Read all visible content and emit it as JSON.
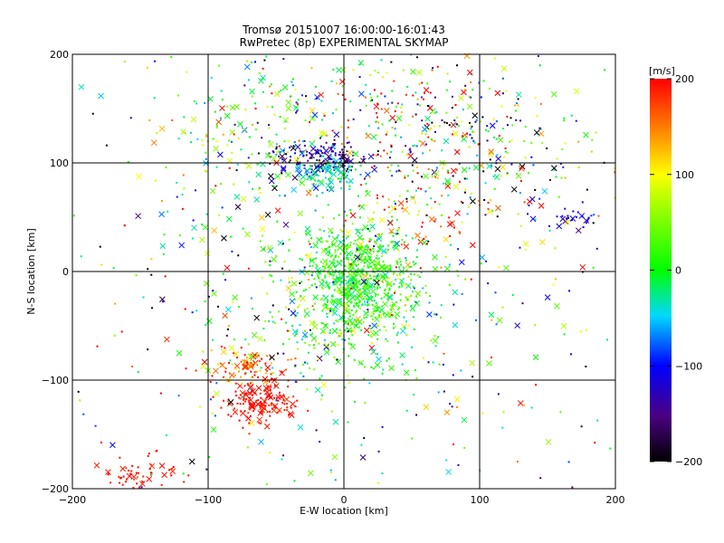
{
  "chart_data": {
    "type": "scatter",
    "title": "Tromsø 20151007 16:00:00-16:01:43",
    "subtitle": "RwPretec (8p) EXPERIMENTAL SKYMAP",
    "xlabel": "E-W location [km]",
    "ylabel": "N-S location [km]",
    "xlim": [
      -200,
      200
    ],
    "ylim": [
      -200,
      200
    ],
    "xticks": [
      -200,
      -100,
      0,
      100,
      200
    ],
    "yticks": [
      -200,
      -100,
      0,
      100,
      200
    ],
    "grid": true,
    "colorbar": {
      "label": "[m/s]",
      "range": [
        -200,
        200
      ],
      "ticks": [
        200,
        100,
        0,
        -100,
        -200
      ],
      "colormap": "black-purple-blue-cyan-green-yellow-orange-red"
    },
    "markers": [
      "dot",
      "x"
    ],
    "clusters": [
      {
        "x": 10,
        "y": -5,
        "spread_x": 18,
        "spread_y": 22,
        "count": 520,
        "velocity": 15,
        "v_spread": 25
      },
      {
        "x": 0,
        "y": -30,
        "spread_x": 35,
        "spread_y": 40,
        "count": 380,
        "velocity": 20,
        "v_spread": 40
      },
      {
        "x": -15,
        "y": 105,
        "spread_x": 18,
        "spread_y": 8,
        "count": 160,
        "velocity": -140,
        "v_spread": 30
      },
      {
        "x": -12,
        "y": 90,
        "spread_x": 12,
        "spread_y": 8,
        "count": 90,
        "velocity": -40,
        "v_spread": 25
      },
      {
        "x": -60,
        "y": -120,
        "spread_x": 14,
        "spread_y": 10,
        "count": 160,
        "velocity": 195,
        "v_spread": 10
      },
      {
        "x": -70,
        "y": -88,
        "spread_x": 15,
        "spread_y": 8,
        "count": 90,
        "velocity": 170,
        "v_spread": 50
      },
      {
        "x": -150,
        "y": -190,
        "spread_x": 15,
        "spread_y": 12,
        "count": 70,
        "velocity": 195,
        "v_spread": 10
      },
      {
        "x": 45,
        "y": 150,
        "spread_x": 45,
        "spread_y": 30,
        "count": 200,
        "velocity": 40,
        "v_spread": 140
      },
      {
        "x": 100,
        "y": 110,
        "spread_x": 40,
        "spread_y": 35,
        "count": 170,
        "velocity": -40,
        "v_spread": 180
      },
      {
        "x": 170,
        "y": 50,
        "spread_x": 12,
        "spread_y": 6,
        "count": 30,
        "velocity": -110,
        "v_spread": 15
      },
      {
        "x": -60,
        "y": 140,
        "spread_x": 40,
        "spread_y": 40,
        "count": 160,
        "velocity": 20,
        "v_spread": 80
      },
      {
        "x": 0,
        "y": 0,
        "spread_x": 130,
        "spread_y": 130,
        "count": 700,
        "velocity": 0,
        "v_spread": 130
      },
      {
        "x": 60,
        "y": 60,
        "spread_x": 30,
        "spread_y": 30,
        "count": 80,
        "velocity": 150,
        "v_spread": 60
      }
    ]
  }
}
